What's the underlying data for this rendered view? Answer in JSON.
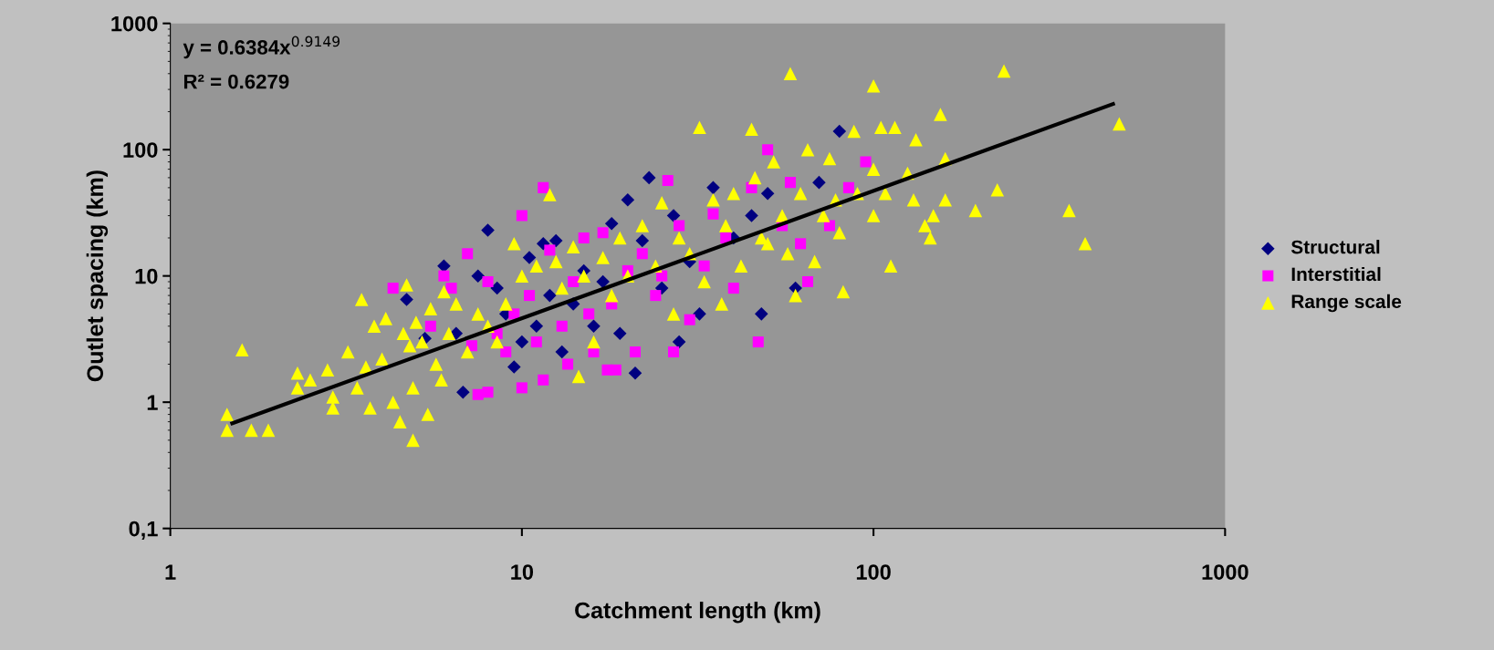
{
  "chart_data": {
    "type": "scatter",
    "xlabel": "Catchment length (km)",
    "ylabel": "Outlet spacing (km)",
    "log": "xy",
    "xlim": [
      1,
      1000
    ],
    "ylim": [
      0.1,
      1000
    ],
    "xticks": [
      1,
      10,
      100,
      1000
    ],
    "yticks": [
      {
        "value": 0.1,
        "label": "0,1"
      },
      1,
      10,
      100,
      1000
    ],
    "grid": false,
    "legend": "right",
    "annotations": [
      "y = 0.6384x$^{0.9149}$",
      "R² = 0.6279"
    ],
    "series": [
      {
        "name": "Structural",
        "color": "#000080",
        "marker": "diamond",
        "x": [
          4.7,
          5.3,
          6,
          6.5,
          6.8,
          7.5,
          8,
          8.5,
          9,
          9.5,
          10,
          10.5,
          11,
          11.5,
          12,
          12.5,
          13,
          14,
          15,
          16,
          17,
          18,
          19,
          20,
          21,
          22,
          23,
          25,
          27,
          28,
          30,
          32,
          35,
          40,
          45,
          48,
          50,
          60,
          70,
          80
        ],
        "values": [
          6.5,
          3.2,
          12,
          3.5,
          1.2,
          10,
          23,
          8,
          5,
          1.9,
          3,
          14,
          4,
          18,
          7,
          19,
          2.5,
          6,
          11,
          4,
          9,
          26,
          3.5,
          40,
          1.7,
          19,
          60,
          8,
          30,
          3,
          13,
          5,
          50,
          20,
          30,
          5,
          45,
          8,
          55,
          140
        ]
      },
      {
        "name": "Interstitial",
        "color": "#ff00ff",
        "marker": "square",
        "x": [
          4.3,
          5.5,
          6,
          6.3,
          7,
          7.2,
          7.5,
          8,
          8,
          8.5,
          9,
          9.5,
          10,
          10,
          10.5,
          11,
          11.5,
          11.5,
          12,
          13,
          13.5,
          14,
          15,
          15.5,
          16,
          17,
          17.5,
          18,
          18.5,
          20,
          21,
          22,
          24,
          25,
          26,
          27,
          28,
          30,
          33,
          35,
          38,
          40,
          45,
          47,
          50,
          55,
          58,
          62,
          65,
          75,
          85,
          95
        ],
        "values": [
          8,
          4,
          10,
          8,
          15,
          2.8,
          1.15,
          1.2,
          9,
          3.5,
          2.5,
          5,
          30,
          1.3,
          7,
          3,
          50,
          1.5,
          16,
          4,
          2,
          9,
          20,
          5,
          2.5,
          22,
          1.8,
          6,
          1.8,
          11,
          2.5,
          15,
          7,
          10,
          57,
          2.5,
          25,
          4.5,
          12,
          31,
          20,
          8,
          50,
          3,
          100,
          25,
          55,
          18,
          9,
          25,
          50,
          80
        ]
      },
      {
        "name": "Range scale",
        "color": "#ffff00",
        "marker": "triangle",
        "x": [
          1.45,
          1.45,
          1.6,
          1.7,
          1.9,
          2.3,
          2.3,
          2.5,
          2.8,
          2.9,
          2.9,
          3.2,
          3.4,
          3.5,
          3.6,
          3.7,
          3.8,
          4,
          4.1,
          4.3,
          4.5,
          4.6,
          4.7,
          4.8,
          4.9,
          4.9,
          5,
          5.2,
          5.4,
          5.5,
          5.7,
          5.9,
          6,
          6.2,
          6.5,
          7,
          7.5,
          8,
          8.5,
          9,
          9.5,
          10,
          11,
          12,
          12.5,
          13,
          14,
          14.5,
          15,
          16,
          17,
          18,
          19,
          20,
          22,
          24,
          25,
          27,
          28,
          30,
          32,
          33,
          35,
          37,
          38,
          40,
          42,
          45,
          46,
          48,
          50,
          52,
          55,
          57,
          58,
          60,
          62,
          65,
          68,
          72,
          75,
          78,
          80,
          82,
          88,
          90,
          100,
          100,
          100,
          105,
          108,
          112,
          115,
          125,
          130,
          132,
          140,
          145,
          148,
          155,
          160,
          160,
          195,
          225,
          235,
          360,
          400,
          500
        ],
        "values": [
          0.8,
          0.6,
          2.6,
          0.6,
          0.6,
          1.7,
          1.3,
          1.5,
          1.8,
          1.1,
          0.9,
          2.5,
          1.3,
          6.5,
          1.9,
          0.9,
          4,
          2.2,
          4.6,
          1.0,
          0.7,
          3.5,
          8.5,
          2.8,
          0.5,
          1.3,
          4.3,
          3,
          0.8,
          5.5,
          2,
          1.5,
          7.5,
          3.5,
          6,
          2.5,
          5,
          4,
          3,
          6,
          18,
          10,
          12,
          44,
          13,
          8,
          17,
          1.6,
          10,
          3,
          14,
          7,
          20,
          10,
          25,
          12,
          38,
          5,
          20,
          15,
          150,
          9,
          40,
          6,
          25,
          45,
          12,
          145,
          60,
          20,
          18,
          80,
          30,
          15,
          400,
          7,
          45,
          100,
          13,
          30,
          85,
          40,
          22,
          7.5,
          140,
          45,
          320,
          70,
          30,
          150,
          45,
          12,
          150,
          65,
          40,
          120,
          25,
          20,
          30,
          190,
          40,
          85,
          33,
          48,
          420,
          33,
          18,
          160
        ]
      },
      {
        "type": "line",
        "color": "#000000",
        "marker": "none",
        "line_style": "solid",
        "x": [
          1.5,
          480
        ],
        "values": [
          0.68,
          230
        ]
      }
    ]
  }
}
